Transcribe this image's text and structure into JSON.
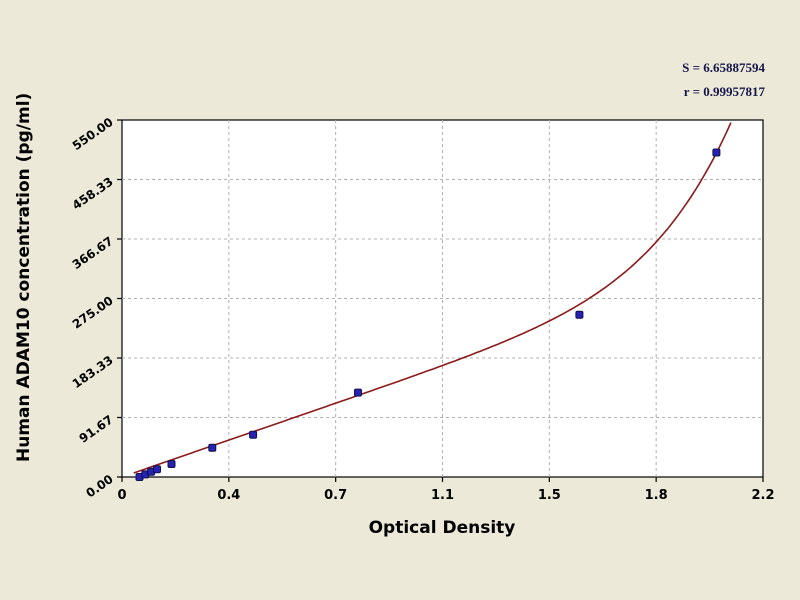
{
  "chart_data": {
    "type": "scatter",
    "title": "",
    "xlabel": "Optical Density",
    "ylabel": "Human ADAM10 concentration (pg/ml)",
    "xlim": [
      0,
      2.2
    ],
    "ylim": [
      0,
      550
    ],
    "grid": true,
    "legend": "none",
    "x_ticks": [
      {
        "value": 0,
        "label": "0"
      },
      {
        "value": 0.3667,
        "label": "0.4"
      },
      {
        "value": 0.7333,
        "label": "0.7"
      },
      {
        "value": 1.1,
        "label": "1.1"
      },
      {
        "value": 1.4667,
        "label": "1.5"
      },
      {
        "value": 1.8333,
        "label": "1.8"
      },
      {
        "value": 2.2,
        "label": "2.2"
      }
    ],
    "y_ticks": [
      {
        "value": 0,
        "label": "0.00"
      },
      {
        "value": 91.67,
        "label": "91.67"
      },
      {
        "value": 183.33,
        "label": "183.33"
      },
      {
        "value": 275.0,
        "label": "275.00"
      },
      {
        "value": 366.67,
        "label": "366.67"
      },
      {
        "value": 458.33,
        "label": "458.33"
      },
      {
        "value": 550.0,
        "label": "550.00"
      }
    ],
    "points": [
      {
        "od": 0.06,
        "conc": 0
      },
      {
        "od": 0.08,
        "conc": 4
      },
      {
        "od": 0.1,
        "conc": 8
      },
      {
        "od": 0.12,
        "conc": 12
      },
      {
        "od": 0.17,
        "conc": 20
      },
      {
        "od": 0.31,
        "conc": 45
      },
      {
        "od": 0.45,
        "conc": 65
      },
      {
        "od": 0.81,
        "conc": 130
      },
      {
        "od": 1.57,
        "conc": 250
      },
      {
        "od": 2.04,
        "conc": 500
      }
    ],
    "fit_curve": {
      "model": "conc = a*od + b*od^n",
      "a": 155,
      "b": 0.61,
      "n": 8
    },
    "annotations": {
      "s": "S = 6.65887594",
      "r": "r = 0.99957817"
    },
    "colors": {
      "background": "#ece9d8",
      "plot_bg": "#ffffff",
      "curve": "#8b1a1a",
      "marker": "#2622b2",
      "marker_edge": "#10104a",
      "grid": "#b0b0b0",
      "axis": "#000000",
      "tick_text": "#000000",
      "annotation_text": "#15154a"
    }
  }
}
